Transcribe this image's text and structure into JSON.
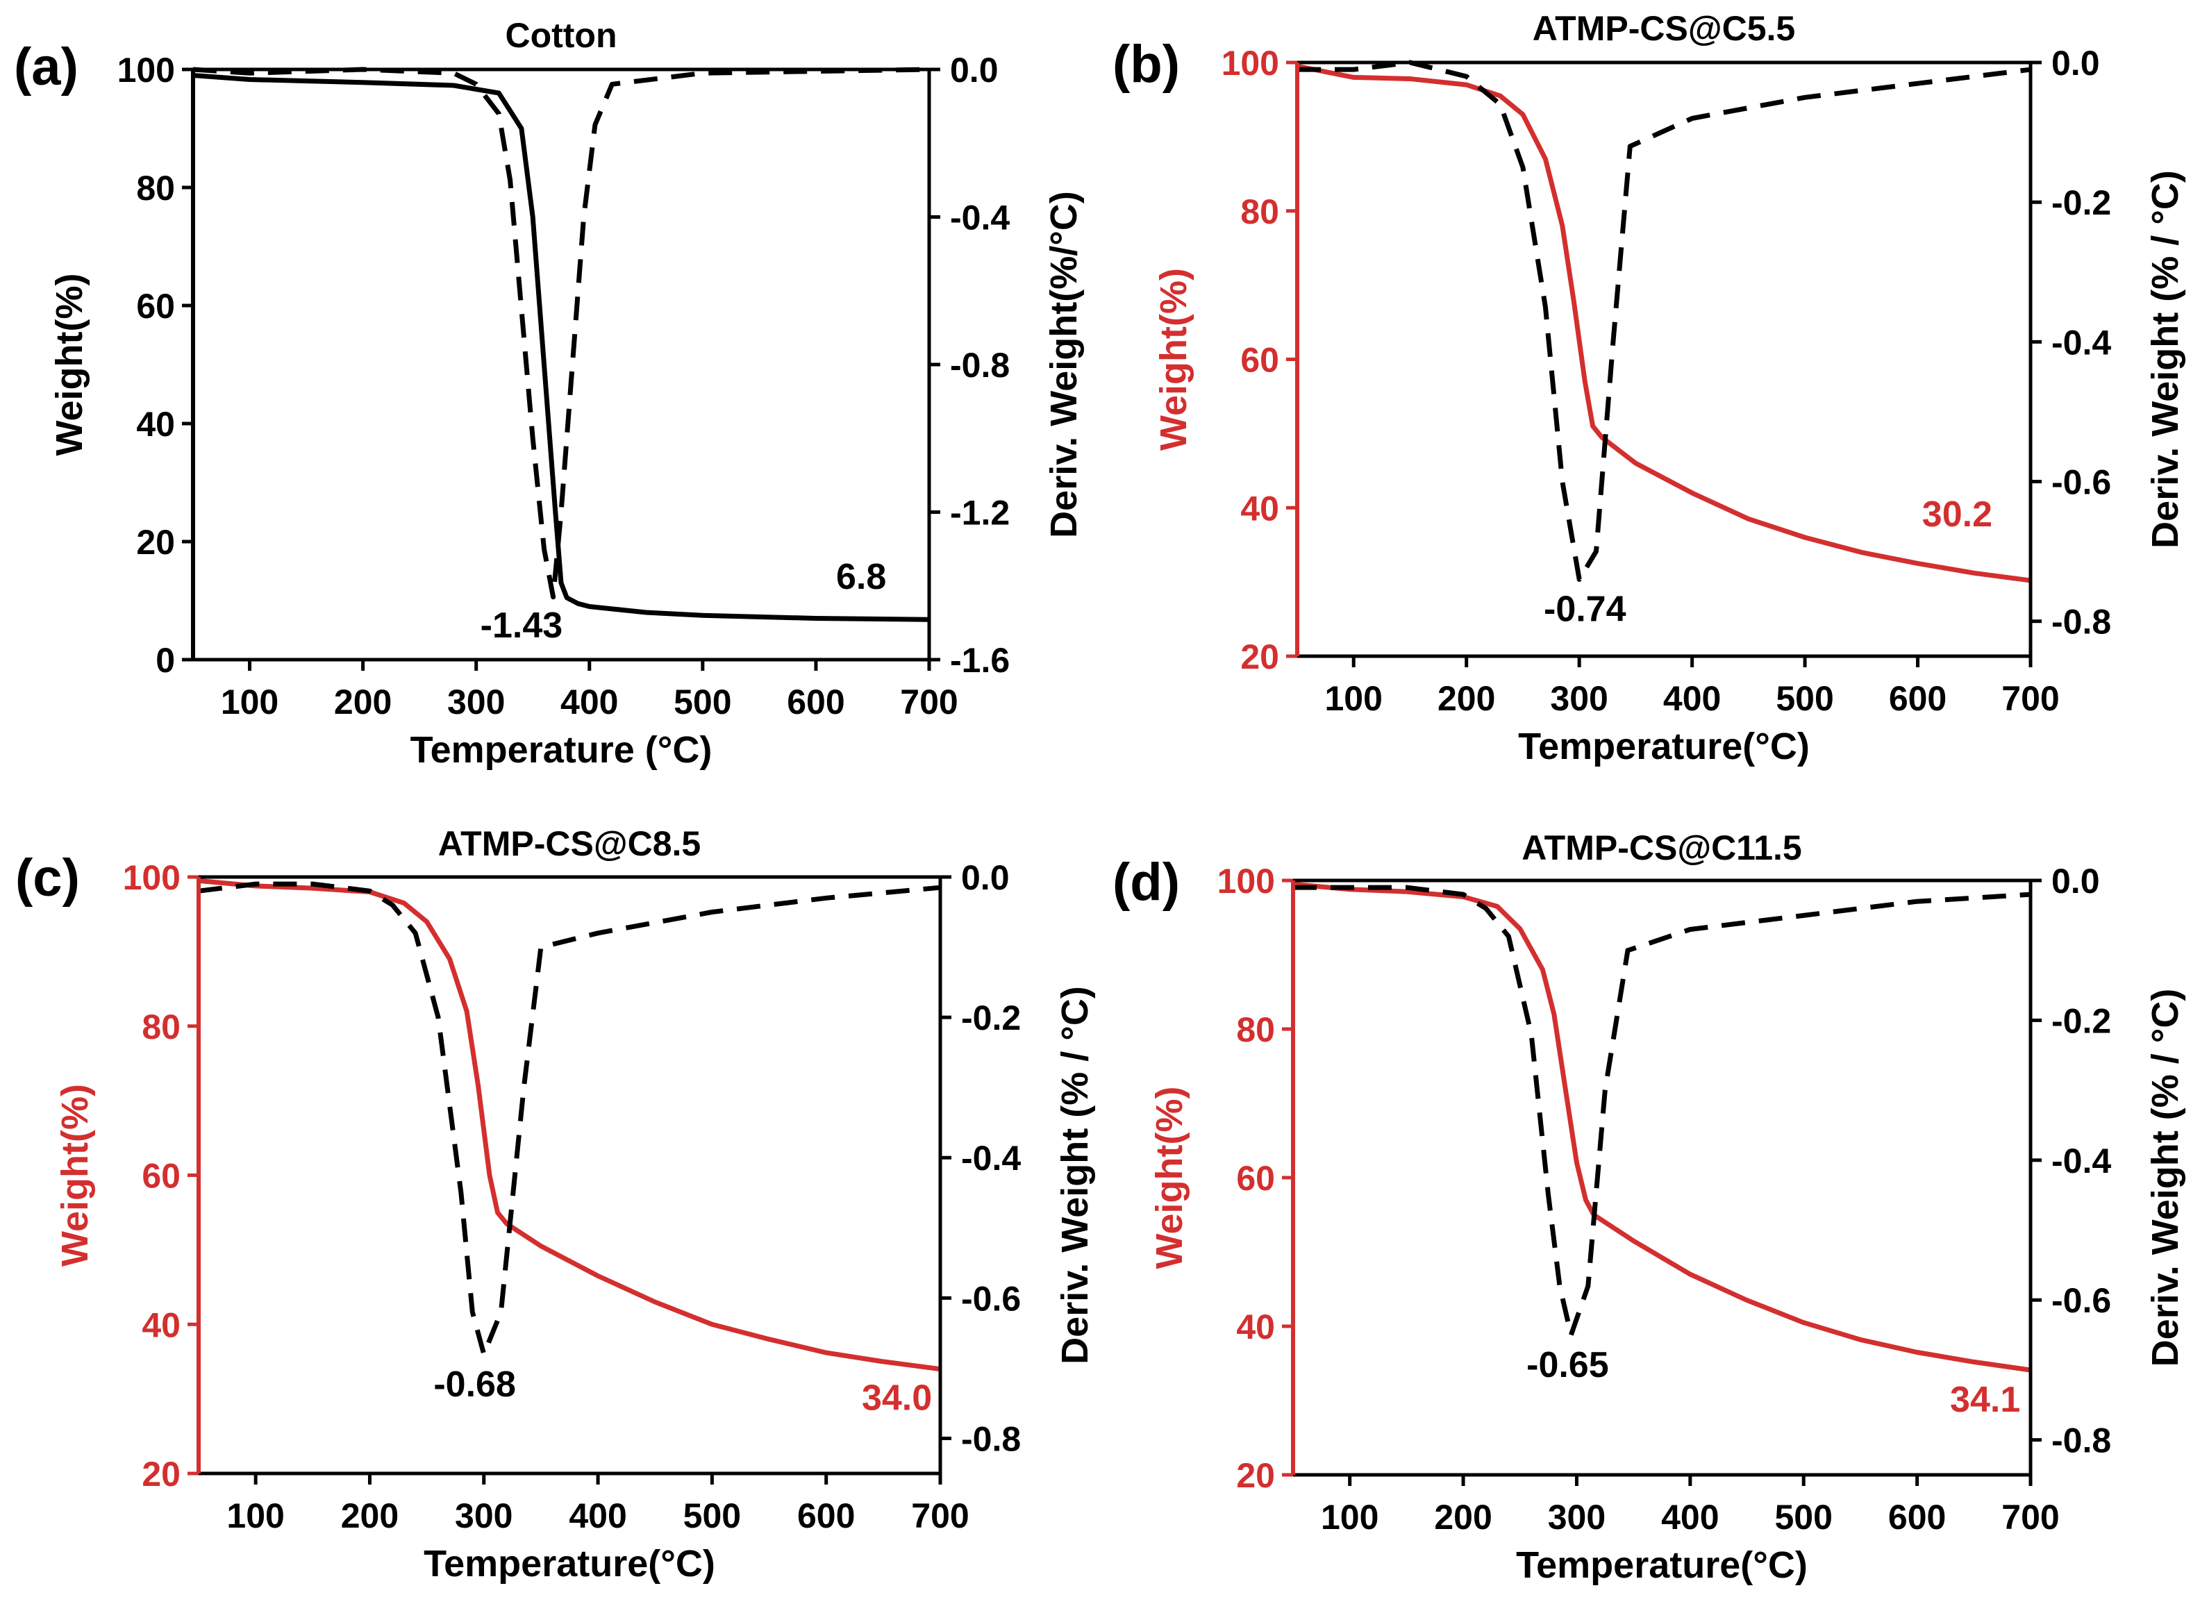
{
  "figure": {
    "accent_color": "#d32f2f",
    "black": "#000000"
  },
  "chart_data": [
    {
      "id": "a",
      "type": "line",
      "panel_label": "(a)",
      "title": "Cotton",
      "xlabel": "Temperature (°C)",
      "ylabel_left": "Weight(%)",
      "ylabel_right": "Deriv. Weight(%/°C)",
      "left_color": "#000000",
      "xlim": [
        50,
        700
      ],
      "ylim_left": [
        0,
        100
      ],
      "ylim_right": [
        -1.6,
        0.0
      ],
      "xticks": [
        100,
        200,
        300,
        400,
        500,
        600,
        700
      ],
      "yticks_left": [
        0,
        20,
        40,
        60,
        80,
        100
      ],
      "yticks_right": [
        -1.6,
        -1.2,
        -0.8,
        -0.4,
        0.0
      ],
      "ytick_labels_right": [
        "-1.6",
        "-1.2",
        "-0.8",
        "-0.4",
        "0.0"
      ],
      "series": [
        {
          "name": "Weight",
          "axis": "left",
          "style": "solid",
          "color": "#000000",
          "x": [
            50,
            100,
            200,
            280,
            320,
            340,
            350,
            360,
            370,
            375,
            380,
            390,
            400,
            450,
            500,
            600,
            700
          ],
          "y": [
            99,
            98.3,
            97.8,
            97.3,
            96,
            90,
            75,
            50,
            25,
            13,
            10.5,
            9.5,
            9,
            8,
            7.5,
            7,
            6.8
          ]
        },
        {
          "name": "Deriv. Weight",
          "axis": "right",
          "style": "dashed",
          "color": "#000000",
          "x": [
            50,
            100,
            200,
            280,
            300,
            320,
            330,
            340,
            350,
            360,
            368,
            375,
            385,
            395,
            405,
            420,
            500,
            700
          ],
          "y": [
            0.0,
            -0.01,
            0.0,
            -0.01,
            -0.04,
            -0.12,
            -0.3,
            -0.65,
            -1.0,
            -1.3,
            -1.43,
            -1.2,
            -0.8,
            -0.4,
            -0.15,
            -0.04,
            -0.01,
            0.0
          ]
        }
      ],
      "annotations": [
        {
          "text": "6.8",
          "x": 640,
          "y": 12,
          "axis": "left",
          "color": "#000000"
        },
        {
          "text": "-1.43",
          "x": 340,
          "y": -1.54,
          "axis": "right",
          "color": "#000000"
        }
      ]
    },
    {
      "id": "b",
      "type": "line",
      "panel_label": "(b)",
      "title": "ATMP-CS@C5.5",
      "xlabel": "Temperature(°C)",
      "ylabel_left": "Weight(%)",
      "ylabel_right": "Deriv. Weight (% / °C)",
      "left_color": "#d32f2f",
      "xlim": [
        50,
        700
      ],
      "ylim_left": [
        20,
        100
      ],
      "ylim_right": [
        -0.85,
        0.0
      ],
      "xticks": [
        100,
        200,
        300,
        400,
        500,
        600,
        700
      ],
      "yticks_left": [
        20,
        40,
        60,
        80,
        100
      ],
      "yticks_right": [
        -0.8,
        -0.6,
        -0.4,
        -0.2,
        0.0
      ],
      "ytick_labels_right": [
        "-0.8",
        "-0.6",
        "-0.4",
        "-0.2",
        "0.0"
      ],
      "series": [
        {
          "name": "Weight",
          "axis": "left",
          "style": "solid",
          "color": "#d32f2f",
          "x": [
            50,
            100,
            150,
            200,
            230,
            250,
            270,
            285,
            295,
            305,
            312,
            320,
            350,
            400,
            450,
            500,
            550,
            600,
            650,
            700
          ],
          "y": [
            99.5,
            98,
            97.8,
            97,
            95.5,
            93,
            87,
            78,
            68,
            57,
            51,
            49.5,
            46,
            42,
            38.5,
            36,
            34,
            32.5,
            31.2,
            30.2
          ]
        },
        {
          "name": "Deriv. Weight",
          "axis": "right",
          "style": "dashed",
          "color": "#000000",
          "x": [
            50,
            100,
            150,
            200,
            230,
            250,
            270,
            285,
            300,
            315,
            330,
            345,
            400,
            500,
            600,
            700
          ],
          "y": [
            -0.01,
            -0.01,
            0.0,
            -0.02,
            -0.06,
            -0.15,
            -0.35,
            -0.6,
            -0.74,
            -0.7,
            -0.4,
            -0.12,
            -0.08,
            -0.05,
            -0.03,
            -0.01
          ]
        }
      ],
      "annotations": [
        {
          "text": "30.2",
          "x": 635,
          "y": 37.5,
          "axis": "left",
          "color": "#d32f2f"
        },
        {
          "text": "-0.74",
          "x": 305,
          "y": -0.8,
          "axis": "right",
          "color": "#000000"
        }
      ]
    },
    {
      "id": "c",
      "type": "line",
      "panel_label": "(c)",
      "title": "ATMP-CS@C8.5",
      "xlabel": "Temperature(°C)",
      "ylabel_left": "Weight(%)",
      "ylabel_right": "Deriv. Weight (% / °C)",
      "left_color": "#d32f2f",
      "xlim": [
        50,
        700
      ],
      "ylim_left": [
        20,
        100
      ],
      "ylim_right": [
        -0.85,
        0.0
      ],
      "xticks": [
        100,
        200,
        300,
        400,
        500,
        600,
        700
      ],
      "yticks_left": [
        20,
        40,
        60,
        80,
        100
      ],
      "yticks_right": [
        -0.8,
        -0.6,
        -0.4,
        -0.2,
        0.0
      ],
      "ytick_labels_right": [
        "-0.8",
        "-0.6",
        "-0.4",
        "-0.2",
        "0.0"
      ],
      "series": [
        {
          "name": "Weight",
          "axis": "left",
          "style": "solid",
          "color": "#d32f2f",
          "x": [
            50,
            100,
            150,
            200,
            230,
            250,
            270,
            285,
            295,
            305,
            312,
            320,
            350,
            400,
            450,
            500,
            550,
            600,
            650,
            700
          ],
          "y": [
            99.5,
            98.8,
            98.5,
            98,
            96.5,
            94,
            89,
            82,
            72,
            60,
            55,
            53.5,
            50.5,
            46.5,
            43,
            40,
            38,
            36.2,
            35,
            34
          ]
        },
        {
          "name": "Deriv. Weight",
          "axis": "right",
          "style": "dashed",
          "color": "#000000",
          "x": [
            50,
            100,
            150,
            200,
            220,
            240,
            260,
            280,
            290,
            300,
            315,
            335,
            350,
            400,
            500,
            600,
            700
          ],
          "y": [
            -0.02,
            -0.01,
            -0.01,
            -0.02,
            -0.04,
            -0.08,
            -0.2,
            -0.45,
            -0.62,
            -0.68,
            -0.62,
            -0.3,
            -0.1,
            -0.08,
            -0.05,
            -0.03,
            -0.015
          ]
        }
      ],
      "annotations": [
        {
          "text": "34.0",
          "x": 662,
          "y": 28.5,
          "axis": "left",
          "color": "#d32f2f"
        },
        {
          "text": "-0.68",
          "x": 292,
          "y": -0.74,
          "axis": "right",
          "color": "#000000"
        }
      ]
    },
    {
      "id": "d",
      "type": "line",
      "panel_label": "(d)",
      "title": "ATMP-CS@C11.5",
      "xlabel": "Temperature(°C)",
      "ylabel_left": "Weight(%)",
      "ylabel_right": "Deriv. Weight (% / °C)",
      "left_color": "#d32f2f",
      "xlim": [
        50,
        700
      ],
      "ylim_left": [
        20,
        100
      ],
      "ylim_right": [
        -0.85,
        0.0
      ],
      "xticks": [
        100,
        200,
        300,
        400,
        500,
        600,
        700
      ],
      "yticks_left": [
        20,
        40,
        60,
        80,
        100
      ],
      "yticks_right": [
        -0.8,
        -0.6,
        -0.4,
        -0.2,
        0.0
      ],
      "ytick_labels_right": [
        "-0.8",
        "-0.6",
        "-0.4",
        "-0.2",
        "0.0"
      ],
      "series": [
        {
          "name": "Weight",
          "axis": "left",
          "style": "solid",
          "color": "#d32f2f",
          "x": [
            50,
            100,
            150,
            200,
            230,
            250,
            270,
            280,
            290,
            300,
            308,
            315,
            350,
            400,
            450,
            500,
            550,
            600,
            650,
            700
          ],
          "y": [
            99.5,
            98.8,
            98.5,
            97.8,
            96.5,
            93.5,
            88,
            82,
            72,
            62,
            57,
            55,
            51.5,
            47,
            43.5,
            40.5,
            38.2,
            36.5,
            35.2,
            34.1
          ]
        },
        {
          "name": "Deriv. Weight",
          "axis": "right",
          "style": "dashed",
          "color": "#000000",
          "x": [
            50,
            100,
            150,
            200,
            220,
            240,
            260,
            275,
            285,
            295,
            310,
            325,
            345,
            400,
            500,
            600,
            700
          ],
          "y": [
            -0.01,
            -0.01,
            -0.01,
            -0.02,
            -0.04,
            -0.08,
            -0.22,
            -0.45,
            -0.58,
            -0.65,
            -0.58,
            -0.3,
            -0.1,
            -0.07,
            -0.05,
            -0.03,
            -0.02
          ]
        }
      ],
      "annotations": [
        {
          "text": "34.1",
          "x": 660,
          "y": 28.5,
          "axis": "left",
          "color": "#d32f2f"
        },
        {
          "text": "-0.65",
          "x": 292,
          "y": -0.71,
          "axis": "right",
          "color": "#000000"
        }
      ]
    }
  ]
}
